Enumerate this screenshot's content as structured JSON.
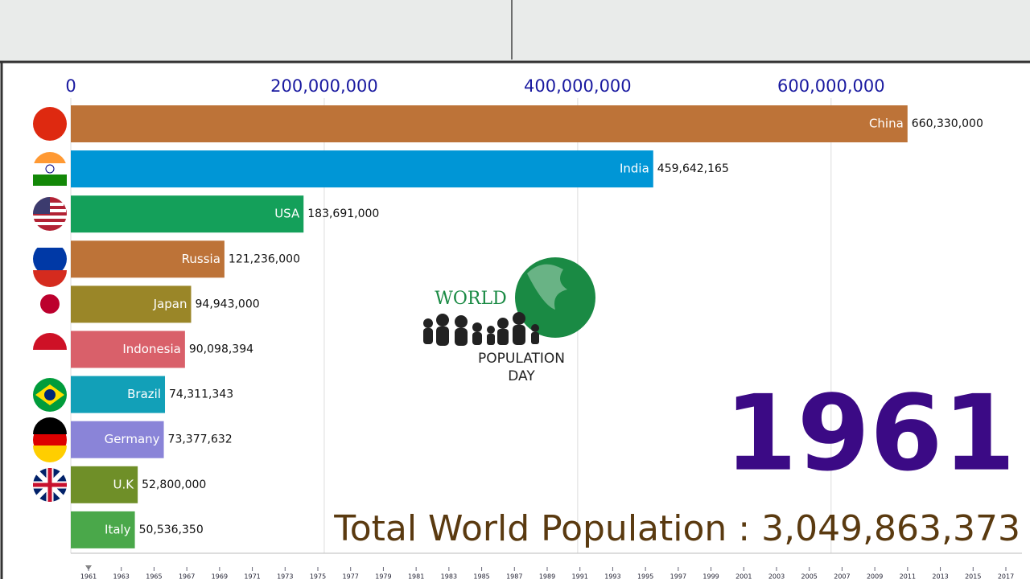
{
  "chart_data": {
    "type": "hbar",
    "categories": [
      "China",
      "India",
      "USA",
      "Russia",
      "Japan",
      "Indonesia",
      "Brazil",
      "Germany",
      "U.K",
      "Italy"
    ],
    "values": [
      660330000,
      459642165,
      183691000,
      121236000,
      94943000,
      90098394,
      74311343,
      73377632,
      52800000,
      50536350
    ],
    "value_labels": [
      "660,330,000",
      "459,642,165",
      "183,691,000",
      "121,236,000",
      "94,943,000",
      "90,098,394",
      "74,311,343",
      "73,377,632",
      "52,800,000",
      "50,536,350"
    ],
    "colors": [
      "#bd7338",
      "#0096d6",
      "#14a05a",
      "#bd7338",
      "#9a8628",
      "#d9606a",
      "#12a0b8",
      "#8a84d8",
      "#6f8f28",
      "#4aa84a"
    ],
    "xlim": [
      0,
      750000000
    ],
    "xticks": [
      0,
      {
        "value": 200000000,
        "label": "200,000,000"
      },
      {
        "value": 400000000,
        "label": "400,000,000"
      },
      {
        "value": 600000000,
        "label": "600,000,000"
      }
    ],
    "grid": true,
    "year": "1961",
    "total_label": "Total World Population : 3,049,863,373"
  },
  "timeline": [
    1961,
    1963,
    1965,
    1967,
    1969,
    1971,
    1973,
    1975,
    1977,
    1979,
    1981,
    1983,
    1985,
    1987,
    1989,
    1991,
    1993,
    1995,
    1997,
    1999,
    2001,
    2003,
    2005,
    2007,
    2009,
    2011,
    2013,
    2015,
    2017
  ],
  "logo": {
    "line1": "WORLD",
    "line2": "POPULATION",
    "line3": "DAY"
  }
}
